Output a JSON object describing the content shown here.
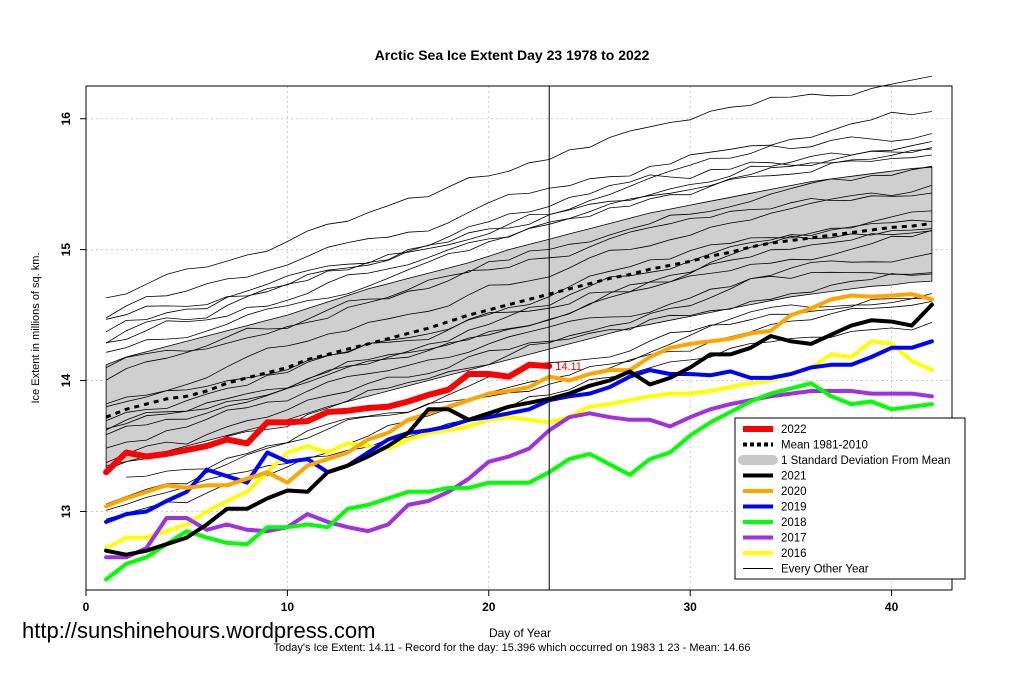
{
  "chart_data": {
    "type": "line",
    "title": "Arctic Sea Ice Extent Day 23 1978 to 2022",
    "xlabel": "Day of Year",
    "ylabel": "Ice Extent in millions of sq. km.",
    "xlim": [
      0,
      43
    ],
    "ylim": [
      12.4,
      16.25
    ],
    "xticks": [
      0,
      10,
      20,
      30,
      40
    ],
    "yticks": [
      13,
      14,
      15,
      16
    ],
    "grid": true,
    "marker_day": 23,
    "current_value_label": "14.11",
    "mean": [
      13.72,
      13.78,
      13.82,
      13.86,
      13.88,
      13.92,
      13.98,
      14.02,
      14.06,
      14.1,
      14.16,
      14.2,
      14.24,
      14.28,
      14.32,
      14.36,
      14.4,
      14.45,
      14.5,
      14.54,
      14.58,
      14.62,
      14.66,
      14.7,
      14.74,
      14.78,
      14.81,
      14.85,
      14.88,
      14.91,
      14.95,
      14.98,
      15.02,
      15.05,
      15.07,
      15.09,
      15.11,
      15.13,
      15.15,
      15.17,
      15.18,
      15.2
    ],
    "sd_upper": [
      14.12,
      14.18,
      14.22,
      14.26,
      14.3,
      14.34,
      14.38,
      14.42,
      14.46,
      14.5,
      14.55,
      14.6,
      14.65,
      14.7,
      14.74,
      14.78,
      14.82,
      14.86,
      14.9,
      14.95,
      15.0,
      15.04,
      15.08,
      15.12,
      15.16,
      15.2,
      15.24,
      15.28,
      15.31,
      15.34,
      15.37,
      15.4,
      15.43,
      15.46,
      15.49,
      15.52,
      15.54,
      15.56,
      15.58,
      15.6,
      15.62,
      15.63
    ],
    "sd_lower": [
      13.32,
      13.38,
      13.42,
      13.46,
      13.5,
      13.54,
      13.58,
      13.62,
      13.66,
      13.7,
      13.75,
      13.8,
      13.84,
      13.88,
      13.92,
      13.96,
      14.0,
      14.04,
      14.08,
      14.12,
      14.16,
      14.2,
      14.24,
      14.28,
      14.32,
      14.36,
      14.4,
      14.43,
      14.46,
      14.49,
      14.52,
      14.55,
      14.58,
      14.61,
      14.64,
      14.66,
      14.68,
      14.7,
      14.72,
      14.73,
      14.75,
      14.76
    ],
    "series": [
      {
        "name": "2022",
        "color": "#ff0000",
        "width": 6,
        "values": [
          13.3,
          13.45,
          13.42,
          13.44,
          13.47,
          13.5,
          13.55,
          13.52,
          13.68,
          13.68,
          13.69,
          13.76,
          13.77,
          13.79,
          13.8,
          13.84,
          13.89,
          13.93,
          14.05,
          14.05,
          14.03,
          14.12,
          14.11
        ]
      },
      {
        "name": "2021",
        "color": "#000000",
        "width": 4,
        "values": [
          12.7,
          12.67,
          12.7,
          12.75,
          12.8,
          12.9,
          13.02,
          13.02,
          13.1,
          13.16,
          13.15,
          13.3,
          13.35,
          13.42,
          13.5,
          13.6,
          13.78,
          13.78,
          13.7,
          13.75,
          13.8,
          13.83,
          13.86,
          13.9,
          13.96,
          14.0,
          14.07,
          13.97,
          14.02,
          14.1,
          14.2,
          14.2,
          14.25,
          14.34,
          14.3,
          14.28,
          14.35,
          14.42,
          14.46,
          14.45,
          14.42,
          14.58
        ]
      },
      {
        "name": "2020",
        "color": "#ffa500",
        "width": 4,
        "values": [
          13.04,
          13.1,
          13.15,
          13.2,
          13.18,
          13.2,
          13.2,
          13.25,
          13.3,
          13.22,
          13.35,
          13.4,
          13.45,
          13.55,
          13.6,
          13.7,
          13.75,
          13.8,
          13.85,
          13.9,
          13.92,
          13.95,
          14.03,
          14.0,
          14.05,
          14.08,
          14.08,
          14.18,
          14.25,
          14.28,
          14.3,
          14.32,
          14.36,
          14.38,
          14.5,
          14.55,
          14.62,
          14.65,
          14.64,
          14.65,
          14.66,
          14.62
        ]
      },
      {
        "name": "2019",
        "color": "#0000ff",
        "width": 4,
        "values": [
          12.92,
          12.98,
          13.0,
          13.08,
          13.15,
          13.32,
          13.27,
          13.22,
          13.45,
          13.38,
          13.4,
          13.3,
          13.35,
          13.45,
          13.55,
          13.6,
          13.62,
          13.65,
          13.7,
          13.72,
          13.75,
          13.78,
          13.85,
          13.88,
          13.9,
          13.95,
          14.03,
          14.08,
          14.05,
          14.05,
          14.04,
          14.07,
          14.02,
          14.02,
          14.05,
          14.1,
          14.12,
          14.12,
          14.18,
          14.25,
          14.25,
          14.3
        ]
      },
      {
        "name": "2018",
        "color": "#00ff00",
        "width": 4,
        "values": [
          12.48,
          12.6,
          12.65,
          12.75,
          12.85,
          12.8,
          12.76,
          12.75,
          12.88,
          12.88,
          12.9,
          12.88,
          13.02,
          13.05,
          13.1,
          13.15,
          13.15,
          13.18,
          13.18,
          13.22,
          13.22,
          13.22,
          13.3,
          13.4,
          13.44,
          13.36,
          13.28,
          13.4,
          13.45,
          13.58,
          13.68,
          13.76,
          13.84,
          13.9,
          13.94,
          13.98,
          13.88,
          13.82,
          13.84,
          13.78,
          13.8,
          13.82
        ]
      },
      {
        "name": "2017",
        "color": "#a030e0",
        "width": 4,
        "values": [
          12.65,
          12.65,
          12.72,
          12.95,
          12.95,
          12.86,
          12.9,
          12.86,
          12.85,
          12.88,
          12.98,
          12.92,
          12.88,
          12.85,
          12.9,
          13.05,
          13.08,
          13.15,
          13.25,
          13.38,
          13.42,
          13.48,
          13.62,
          13.72,
          13.75,
          13.72,
          13.7,
          13.7,
          13.65,
          13.72,
          13.78,
          13.82,
          13.85,
          13.88,
          13.9,
          13.92,
          13.92,
          13.92,
          13.9,
          13.9,
          13.9,
          13.88
        ]
      },
      {
        "name": "2016",
        "color": "#ffff00",
        "width": 4,
        "values": [
          12.72,
          12.8,
          12.8,
          12.85,
          12.9,
          13.0,
          13.08,
          13.15,
          13.3,
          13.45,
          13.5,
          13.45,
          13.52,
          13.5,
          13.48,
          13.55,
          13.6,
          13.62,
          13.65,
          13.7,
          13.72,
          13.7,
          13.68,
          13.72,
          13.8,
          13.82,
          13.85,
          13.88,
          13.9,
          13.9,
          13.92,
          13.95,
          13.98,
          14.0,
          14.05,
          14.1,
          14.2,
          14.18,
          14.3,
          14.28,
          14.15,
          14.08
        ]
      }
    ]
  },
  "labels": {
    "watermark": "http://sunshinehours.wordpress.com",
    "footer": "Today's Ice Extent: 14.11  - Record for the day: 15.396 which occurred on 1983 1 23  - Mean: 14.66"
  },
  "legend": {
    "position": "bottom-right",
    "items": [
      {
        "label": "2022",
        "color": "#ff0000",
        "kind": "line",
        "width": 6
      },
      {
        "label": "Mean 1981-2010",
        "color": "#000000",
        "kind": "dashed",
        "width": 4
      },
      {
        "label": "1 Standard Deviation From Mean",
        "color": "#c8c8c8",
        "kind": "band",
        "width": 10
      },
      {
        "label": "2021",
        "color": "#000000",
        "kind": "line",
        "width": 4
      },
      {
        "label": "2020",
        "color": "#ffa500",
        "kind": "line",
        "width": 4
      },
      {
        "label": "2019",
        "color": "#0000ff",
        "kind": "line",
        "width": 4
      },
      {
        "label": "2018",
        "color": "#00ff00",
        "kind": "line",
        "width": 4
      },
      {
        "label": "2017",
        "color": "#a030e0",
        "kind": "line",
        "width": 4
      },
      {
        "label": "2016",
        "color": "#ffff00",
        "kind": "line",
        "width": 4
      },
      {
        "label": "Every Other Year",
        "color": "#000000",
        "kind": "line",
        "width": 1
      }
    ]
  }
}
